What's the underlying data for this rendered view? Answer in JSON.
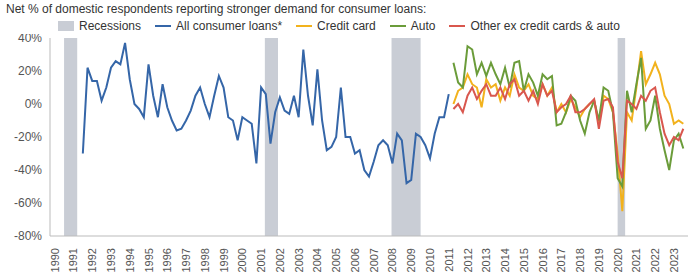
{
  "chart_data": {
    "type": "line",
    "title": "Net % of domestic respondents reporting stronger demand for consumer loans:",
    "xlim": [
      1989.75,
      2023.75
    ],
    "xticks": [
      1990,
      1991,
      1992,
      1993,
      1994,
      1995,
      1996,
      1997,
      1998,
      1999,
      2000,
      2001,
      2002,
      2003,
      2004,
      2005,
      2006,
      2007,
      2008,
      2009,
      2010,
      2011,
      2012,
      2013,
      2014,
      2015,
      2016,
      2017,
      2018,
      2019,
      2020,
      2021,
      2022,
      2023
    ],
    "ylim": [
      -80,
      40
    ],
    "yticks": [
      {
        "value": -80,
        "label": "-80%"
      },
      {
        "value": -60,
        "label": "-60%"
      },
      {
        "value": -40,
        "label": "-40%"
      },
      {
        "value": -20,
        "label": "-20%"
      },
      {
        "value": 0,
        "label": "0%"
      },
      {
        "value": 20,
        "label": "20%"
      },
      {
        "value": 40,
        "label": "40%"
      }
    ],
    "grid": false,
    "legend": "top",
    "recessions": {
      "name": "Recessions",
      "color": "#c9cdd5",
      "ranges": [
        [
          1990.5,
          1991.2
        ],
        [
          2001.2,
          2001.9
        ],
        [
          2007.95,
          2009.5
        ],
        [
          2020.0,
          2020.4
        ]
      ]
    },
    "series": [
      {
        "name": "All consumer loans*",
        "color": "#3566a8",
        "x": [
          1991.5,
          1991.75,
          1992,
          1992.25,
          1992.5,
          1992.75,
          1993,
          1993.25,
          1993.5,
          1993.75,
          1994,
          1994.25,
          1994.5,
          1994.75,
          1995,
          1995.25,
          1995.5,
          1995.75,
          1996,
          1996.25,
          1996.5,
          1996.75,
          1997,
          1997.25,
          1997.5,
          1997.75,
          1998,
          1998.25,
          1998.5,
          1998.75,
          1999,
          1999.25,
          1999.5,
          1999.75,
          2000,
          2000.25,
          2000.5,
          2000.75,
          2001,
          2001.25,
          2001.5,
          2001.75,
          2002,
          2002.25,
          2002.5,
          2002.75,
          2003,
          2003.25,
          2003.5,
          2003.75,
          2004,
          2004.25,
          2004.5,
          2004.75,
          2005,
          2005.25,
          2005.5,
          2005.75,
          2006,
          2006.25,
          2006.5,
          2006.75,
          2007,
          2007.25,
          2007.5,
          2007.75,
          2008,
          2008.25,
          2008.5,
          2008.75,
          2009,
          2009.25,
          2009.5,
          2009.75,
          2010,
          2010.25,
          2010.5,
          2010.75,
          2011
        ],
        "values": [
          -30,
          22,
          14,
          14,
          2,
          10,
          22,
          26,
          24,
          37,
          15,
          0,
          -3,
          -8,
          24,
          5,
          -8,
          12,
          -2,
          -10,
          -16,
          -15,
          -10,
          -4,
          5,
          10,
          0,
          -8,
          5,
          17,
          10,
          -8,
          -10,
          -22,
          -8,
          -10,
          -12,
          -36,
          10,
          6,
          -24,
          -5,
          4,
          -4,
          -6,
          5,
          -8,
          33,
          5,
          -13,
          21,
          -10,
          -28,
          -26,
          -20,
          10,
          -20,
          -20,
          -30,
          -28,
          -40,
          -44,
          -35,
          -25,
          -22,
          -25,
          -36,
          -18,
          -22,
          -48,
          -46,
          -18,
          -20,
          -25,
          -33,
          -18,
          -8,
          -8,
          6
        ]
      },
      {
        "name": "Credit card",
        "color": "#f2b21d",
        "x": [
          2011.25,
          2011.5,
          2011.75,
          2012,
          2012.25,
          2012.5,
          2012.75,
          2013,
          2013.25,
          2013.5,
          2013.75,
          2014,
          2014.25,
          2014.5,
          2014.75,
          2015,
          2015.25,
          2015.5,
          2015.75,
          2016,
          2016.25,
          2016.5,
          2016.75,
          2017,
          2017.25,
          2017.5,
          2017.75,
          2018,
          2018.25,
          2018.5,
          2018.75,
          2019,
          2019.25,
          2019.5,
          2019.75,
          2020,
          2020.25,
          2020.5,
          2020.75,
          2021,
          2021.25,
          2021.5,
          2021.75,
          2022,
          2022.25,
          2022.5,
          2022.75,
          2023,
          2023.25,
          2023.5
        ],
        "values": [
          0,
          8,
          10,
          18,
          12,
          10,
          -2,
          15,
          10,
          12,
          2,
          10,
          5,
          18,
          10,
          8,
          12,
          5,
          3,
          12,
          5,
          10,
          -5,
          0,
          -5,
          3,
          -2,
          -8,
          -3,
          0,
          2,
          -12,
          5,
          3,
          -5,
          -30,
          -65,
          -5,
          -10,
          10,
          32,
          12,
          18,
          25,
          18,
          5,
          0,
          -12,
          -10,
          -12
        ]
      },
      {
        "name": "Auto",
        "color": "#6b9c3a",
        "x": [
          2011.25,
          2011.5,
          2011.75,
          2012,
          2012.25,
          2012.5,
          2012.75,
          2013,
          2013.25,
          2013.5,
          2013.75,
          2014,
          2014.25,
          2014.5,
          2014.75,
          2015,
          2015.25,
          2015.5,
          2015.75,
          2016,
          2016.25,
          2016.5,
          2016.75,
          2017,
          2017.25,
          2017.5,
          2017.75,
          2018,
          2018.25,
          2018.5,
          2018.75,
          2019,
          2019.25,
          2019.5,
          2019.75,
          2020,
          2020.25,
          2020.5,
          2020.75,
          2021,
          2021.25,
          2021.5,
          2021.75,
          2022,
          2022.25,
          2022.5,
          2022.75,
          2023,
          2023.25,
          2023.5
        ],
        "values": [
          25,
          13,
          10,
          35,
          33,
          18,
          25,
          17,
          25,
          18,
          12,
          22,
          10,
          25,
          26,
          8,
          18,
          13,
          5,
          18,
          15,
          17,
          -13,
          -12,
          -5,
          5,
          2,
          -10,
          -18,
          -5,
          2,
          -10,
          10,
          8,
          -5,
          -45,
          -50,
          8,
          -5,
          12,
          28,
          -15,
          -10,
          5,
          -15,
          -28,
          -40,
          -22,
          -18,
          -27
        ]
      },
      {
        "name": "Other ex credit cards & auto",
        "color": "#d9574e",
        "x": [
          2011.25,
          2011.5,
          2011.75,
          2012,
          2012.25,
          2012.5,
          2012.75,
          2013,
          2013.25,
          2013.5,
          2013.75,
          2014,
          2014.25,
          2014.5,
          2014.75,
          2015,
          2015.25,
          2015.5,
          2015.75,
          2016,
          2016.25,
          2016.5,
          2016.75,
          2017,
          2017.25,
          2017.5,
          2017.75,
          2018,
          2018.25,
          2018.5,
          2018.75,
          2019,
          2019.25,
          2019.5,
          2019.75,
          2020,
          2020.25,
          2020.5,
          2020.75,
          2021,
          2021.25,
          2021.5,
          2021.75,
          2022,
          2022.25,
          2022.5,
          2022.75,
          2023,
          2023.25,
          2023.5
        ],
        "values": [
          -3,
          0,
          -5,
          5,
          10,
          3,
          8,
          12,
          5,
          5,
          10,
          3,
          12,
          15,
          5,
          8,
          2,
          8,
          0,
          12,
          5,
          8,
          -5,
          -2,
          0,
          5,
          -5,
          -5,
          -3,
          0,
          3,
          -15,
          2,
          3,
          -2,
          -35,
          -45,
          2,
          0,
          -3,
          5,
          2,
          8,
          10,
          -5,
          -18,
          -25,
          -20,
          -22,
          -15
        ]
      }
    ]
  }
}
